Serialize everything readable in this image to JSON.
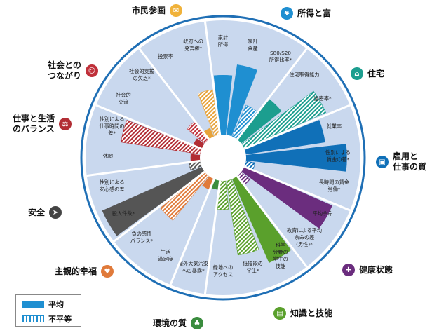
{
  "chart_data": {
    "type": "radial-bar",
    "title": "",
    "sectors": [
      {
        "label": "家計\n所得",
        "value": 0.52,
        "kind": "average",
        "color": "#1f8fd1"
      },
      {
        "label": "家計\n資産",
        "value": 0.62,
        "kind": "average",
        "color": "#1f8fd1"
      },
      {
        "label": "S80/S20\n所得比率*",
        "value": 0.3,
        "kind": "inequality",
        "color": "#1f8fd1"
      },
      {
        "label": "住宅取得能力",
        "value": 0.45,
        "kind": "average",
        "color": "#1c9e8f"
      },
      {
        "label": "過密率*",
        "value": 0.78,
        "kind": "inequality",
        "color": "#1c9e8f"
      },
      {
        "label": "就業率",
        "value": 0.7,
        "kind": "average",
        "color": "#1070b8"
      },
      {
        "label": "性別による\n賃金の差*",
        "value": 0.88,
        "kind": "average",
        "color": "#1070b8"
      },
      {
        "label": "長時間の賃金\n労働*",
        "value": 0.08,
        "kind": "inequality",
        "color": "#1070b8"
      },
      {
        "label": "平均余命",
        "value": 0.84,
        "kind": "average",
        "color": "#6b2d7e"
      },
      {
        "label": "教育による平均\n余命の差\n(男性)*",
        "value": 0.1,
        "kind": "inequality",
        "color": "#6b2d7e"
      },
      {
        "label": "科学\n分野の\n学生の\n技能",
        "value": 0.8,
        "kind": "average",
        "color": "#5aa02c"
      },
      {
        "label": "低技能の\n学生*",
        "value": 0.66,
        "kind": "inequality",
        "color": "#5aa02c"
      },
      {
        "label": "緑地への\nアクセス",
        "value": 0.25,
        "kind": "inequality",
        "color": "#5aa02c"
      },
      {
        "label": "屋外大気汚染\nへの暴露*",
        "value": 0.08,
        "kind": "average",
        "color": "#3a8c3e"
      },
      {
        "label": "生活\n満足度",
        "value": 0.1,
        "kind": "average",
        "color": "#e07a3a"
      },
      {
        "label": "負の感情\nバランス*",
        "value": 0.5,
        "kind": "inequality",
        "color": "#e07a3a"
      },
      {
        "label": "殺人件数*",
        "value": 0.95,
        "kind": "average",
        "color": "#555555"
      },
      {
        "label": "性別による\n安心感の差",
        "value": 0.1,
        "kind": "inequality",
        "color": "#555555"
      },
      {
        "label": "休暇",
        "value": 0.08,
        "kind": "average",
        "color": "#b22d34"
      },
      {
        "label": "性別による\n仕事時間の\n差*",
        "value": 0.7,
        "kind": "inequality",
        "color": "#b22d34"
      },
      {
        "label": "社会的\n交流",
        "value": 0.08,
        "kind": "average",
        "color": "#b22d34"
      },
      {
        "label": "社会的支援\nの欠乏*",
        "value": 0.2,
        "kind": "inequality",
        "color": "#c0303a"
      },
      {
        "label": "投票率",
        "value": 0.08,
        "kind": "average",
        "color": "#e8a33a"
      },
      {
        "label": "政府への\n発言権*",
        "value": 0.4,
        "kind": "inequality",
        "color": "#e8a33a"
      }
    ]
  },
  "domains": [
    {
      "label": "市民参画",
      "icon": "civic-icon",
      "color": "#f0b23a"
    },
    {
      "label": "所得と富",
      "icon": "income-icon",
      "color": "#1f8fd1"
    },
    {
      "label": "住宅",
      "icon": "house-icon",
      "color": "#1c9e8f"
    },
    {
      "label": "雇用と\n仕事の質",
      "icon": "briefcase-icon",
      "color": "#1070b8"
    },
    {
      "label": "健康状態",
      "icon": "health-cross-icon",
      "color": "#6b2d7e"
    },
    {
      "label": "知識と技能",
      "icon": "book-icon",
      "color": "#5aa02c"
    },
    {
      "label": "環境の質",
      "icon": "tree-icon",
      "color": "#3a8c3e"
    },
    {
      "label": "主観的幸福",
      "icon": "heart-icon",
      "color": "#e07a3a"
    },
    {
      "label": "安全",
      "icon": "runner-icon",
      "color": "#444444"
    },
    {
      "label": "仕事と生活\nのバランス",
      "icon": "scale-icon",
      "color": "#b22d34"
    },
    {
      "label": "社会との\nつながり",
      "icon": "people-icon",
      "color": "#c0303a"
    }
  ],
  "legend": {
    "average": "平均",
    "inequality": "不平等"
  }
}
